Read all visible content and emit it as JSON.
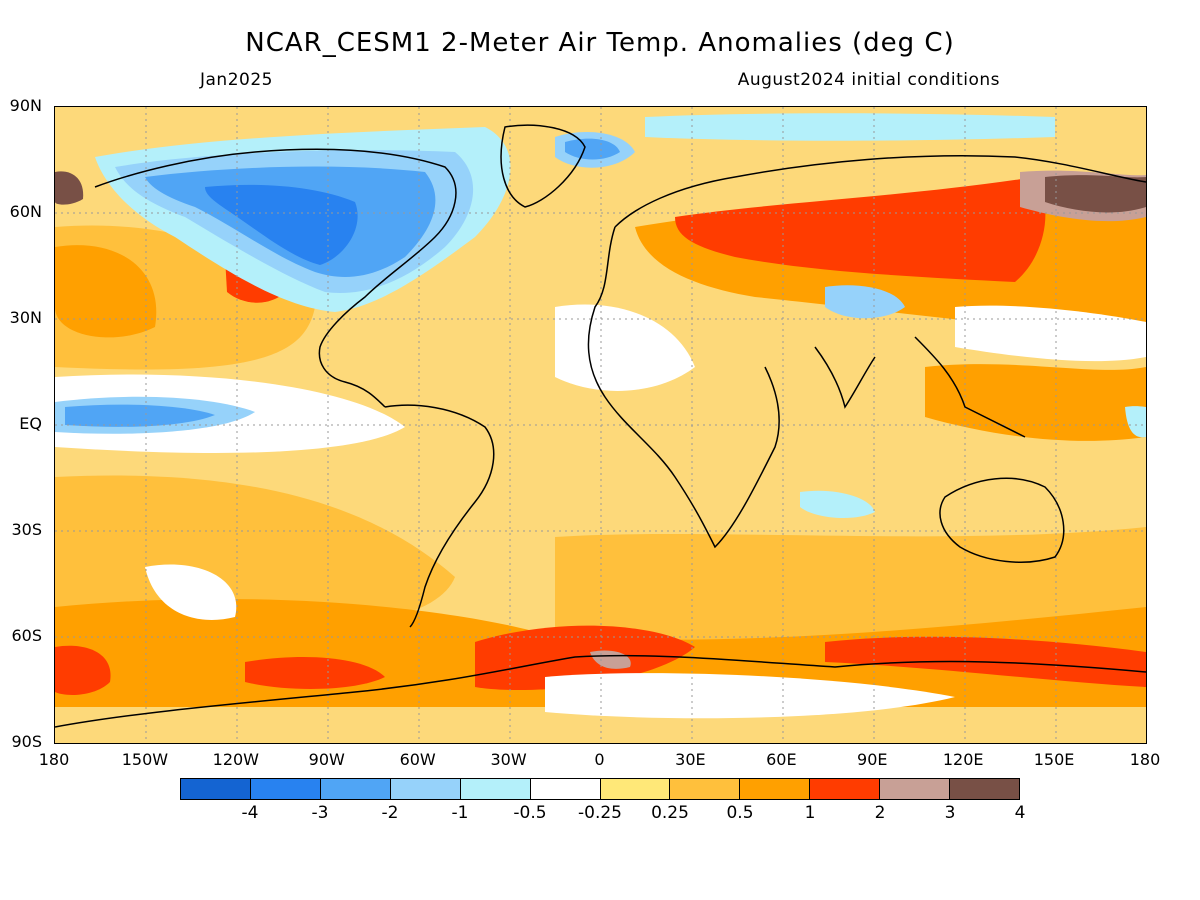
{
  "title": "NCAR_CESM1 2-Meter Air Temp. Anomalies (deg C)",
  "subtitle_left": "Jan2025",
  "subtitle_right": "August2024 initial conditions",
  "lat_labels": [
    "90N",
    "60N",
    "30N",
    "EQ",
    "30S",
    "60S",
    "90S"
  ],
  "lon_labels": [
    "180",
    "150W",
    "120W",
    "90W",
    "60W",
    "30W",
    "0",
    "30E",
    "60E",
    "90E",
    "120E",
    "150E",
    "180"
  ],
  "colorbar": {
    "colors": [
      "#1464d2",
      "#2882f0",
      "#50a5f5",
      "#96d2fa",
      "#b4f0fa",
      "#ffffff",
      "#ffe878",
      "#ffc03c",
      "#ffa000",
      "#ff3c00",
      "#c8a096",
      "#785046"
    ],
    "labels": [
      "-4",
      "-3",
      "-2",
      "-1",
      "-0.5",
      "-0.25",
      "0.25",
      "0.5",
      "1",
      "2",
      "3",
      "4"
    ]
  },
  "palette": {
    "background": "#fdd97a",
    "deep_blue": "#2882f0",
    "mid_blue": "#50a5f5",
    "light_blue": "#96d2fa",
    "pale_blue": "#b4f0fa",
    "white": "#ffffff",
    "orange": "#ffa000",
    "light_orange": "#ffc03c",
    "red": "#ff3c00",
    "pink_brown": "#c8a096",
    "brown": "#785046"
  }
}
